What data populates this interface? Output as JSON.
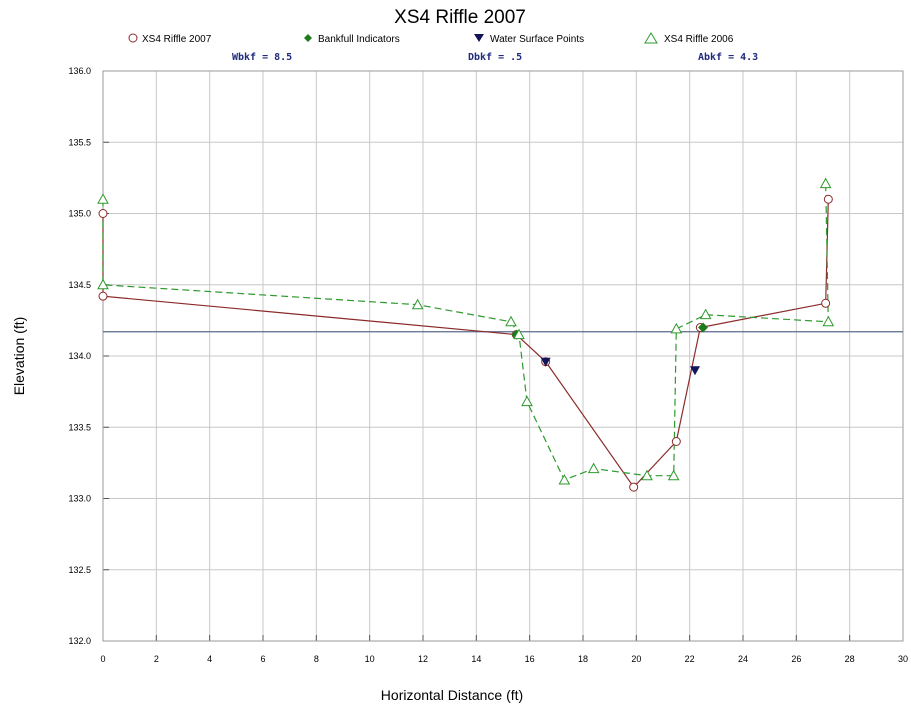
{
  "chart_data": {
    "type": "line",
    "title": "XS4 Riffle 2007",
    "xlabel": "Horizontal Distance (ft)",
    "ylabel": "Elevation (ft)",
    "xlim": [
      0,
      30
    ],
    "ylim": [
      132.0,
      136.0
    ],
    "x_ticks": [
      "0",
      "2",
      "4",
      "6",
      "8",
      "10",
      "12",
      "14",
      "16",
      "18",
      "20",
      "22",
      "24",
      "26",
      "28",
      "30"
    ],
    "y_ticks": [
      "132.0",
      "132.5",
      "133.0",
      "133.5",
      "134.0",
      "134.5",
      "135.0",
      "135.5",
      "136.0"
    ],
    "grid": true,
    "legend_position": "top",
    "metrics": [
      {
        "label": "Wbkf = 8.5"
      },
      {
        "label": "Dbkf = .5"
      },
      {
        "label": "Abkf = 4.3"
      }
    ],
    "bankfull_line": {
      "y": 134.17,
      "color": "#5a6a8a"
    },
    "series": [
      {
        "name": "XS4 Riffle 2007",
        "marker": "circle",
        "color": "#8b2a2a",
        "line_style": "solid",
        "points": [
          [
            0.0,
            135.0
          ],
          [
            0.0,
            134.42
          ],
          [
            15.5,
            134.15
          ],
          [
            16.6,
            133.96
          ],
          [
            19.9,
            133.08
          ],
          [
            21.5,
            133.4
          ],
          [
            22.4,
            134.2
          ],
          [
            27.1,
            134.37
          ],
          [
            27.2,
            135.1
          ]
        ]
      },
      {
        "name": "Bankfull Indicators",
        "marker": "diamond",
        "color": "#1e7a1e",
        "line_style": "none",
        "points": [
          [
            15.5,
            134.15
          ],
          [
            22.5,
            134.2
          ]
        ]
      },
      {
        "name": "Water Surface Points",
        "marker": "triangle-down",
        "color": "#14145a",
        "line_style": "none",
        "points": [
          [
            16.6,
            133.96
          ],
          [
            22.2,
            133.9
          ]
        ]
      },
      {
        "name": "XS4 Riffle 2006",
        "marker": "triangle-up",
        "color": "#2e9a2e",
        "line_style": "dashed",
        "points": [
          [
            0.0,
            135.1
          ],
          [
            0.0,
            134.5
          ],
          [
            11.8,
            134.36
          ],
          [
            15.3,
            134.24
          ],
          [
            15.6,
            134.15
          ],
          [
            15.9,
            133.68
          ],
          [
            17.3,
            133.13
          ],
          [
            18.4,
            133.21
          ],
          [
            20.4,
            133.16
          ],
          [
            21.4,
            133.16
          ],
          [
            21.5,
            134.19
          ],
          [
            22.6,
            134.29
          ],
          [
            27.2,
            134.24
          ],
          [
            27.1,
            135.21
          ]
        ]
      }
    ]
  }
}
